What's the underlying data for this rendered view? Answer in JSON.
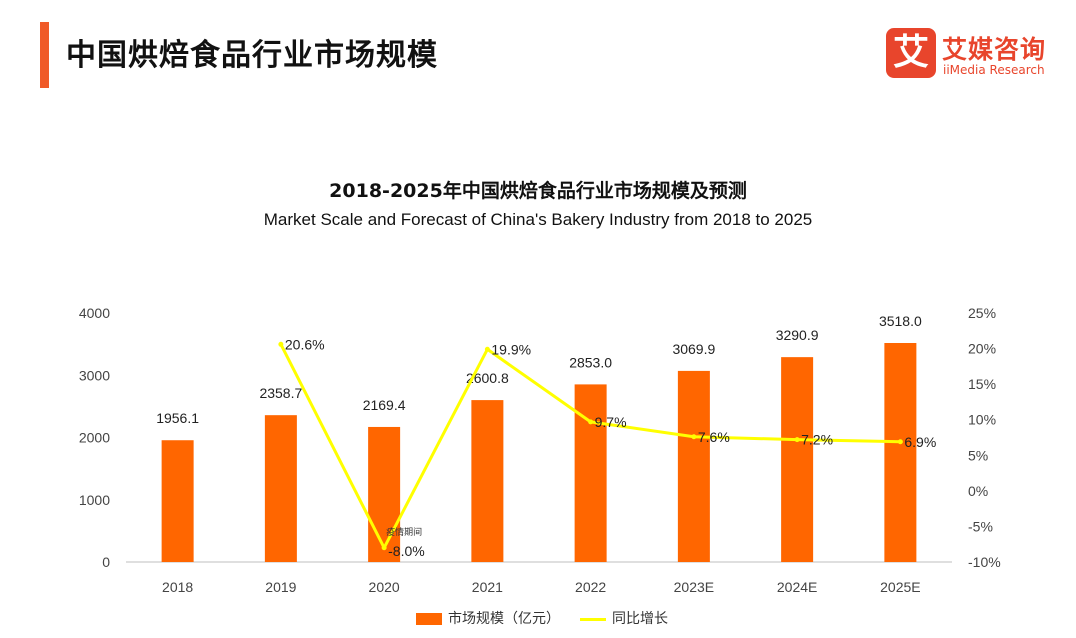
{
  "header": {
    "title": "中国烘焙食品行业市场规模"
  },
  "logo": {
    "mark": "艾",
    "name": "艾媒咨询",
    "sub": "iiMedia Research"
  },
  "colors": {
    "accent": "#f05a28",
    "bar": "#ff6600",
    "line": "#ffff00",
    "logo_brand": "#e8452c"
  },
  "chart_data": {
    "type": "bar",
    "title": "2018-2025年中国烘焙食品行业市场规模及预测",
    "subtitle": "Market Scale and Forecast of China's Bakery Industry from 2018 to 2025",
    "categories": [
      "2018",
      "2019",
      "2020",
      "2021",
      "2022",
      "2023E",
      "2024E",
      "2025E"
    ],
    "series": [
      {
        "name": "市场规模（亿元）",
        "type": "bar",
        "axis": "left",
        "values": [
          1956.1,
          2358.7,
          2169.4,
          2600.8,
          2853.0,
          3069.9,
          3290.9,
          3518.0
        ],
        "labels": [
          "1956.1",
          "2358.7",
          "2169.4",
          "2600.8",
          "2853.0",
          "3069.9",
          "3290.9",
          "3518.0"
        ]
      },
      {
        "name": "同比增长",
        "type": "line",
        "axis": "right",
        "values": [
          null,
          20.6,
          -8.0,
          19.9,
          9.7,
          7.6,
          7.2,
          6.9
        ],
        "labels": [
          "",
          "20.6%",
          "-8.0%",
          "19.9%",
          "9.7%",
          "7.6%",
          "7.2%",
          "6.9%"
        ]
      }
    ],
    "y_left": {
      "range": [
        0,
        4000
      ],
      "ticks": [
        0,
        1000,
        2000,
        3000,
        4000
      ],
      "tick_labels": [
        "0",
        "1000",
        "2000",
        "3000",
        "4000"
      ]
    },
    "y_right": {
      "range": [
        -10,
        25
      ],
      "ticks": [
        -10,
        -5,
        0,
        5,
        10,
        15,
        20,
        25
      ],
      "tick_labels": [
        "-10%",
        "-5%",
        "0%",
        "5%",
        "10%",
        "15%",
        "20%",
        "25%"
      ]
    },
    "annotations": [
      {
        "category": "2020",
        "text": "疫情期间"
      }
    ],
    "grid": false,
    "legend": "bottom-center"
  }
}
